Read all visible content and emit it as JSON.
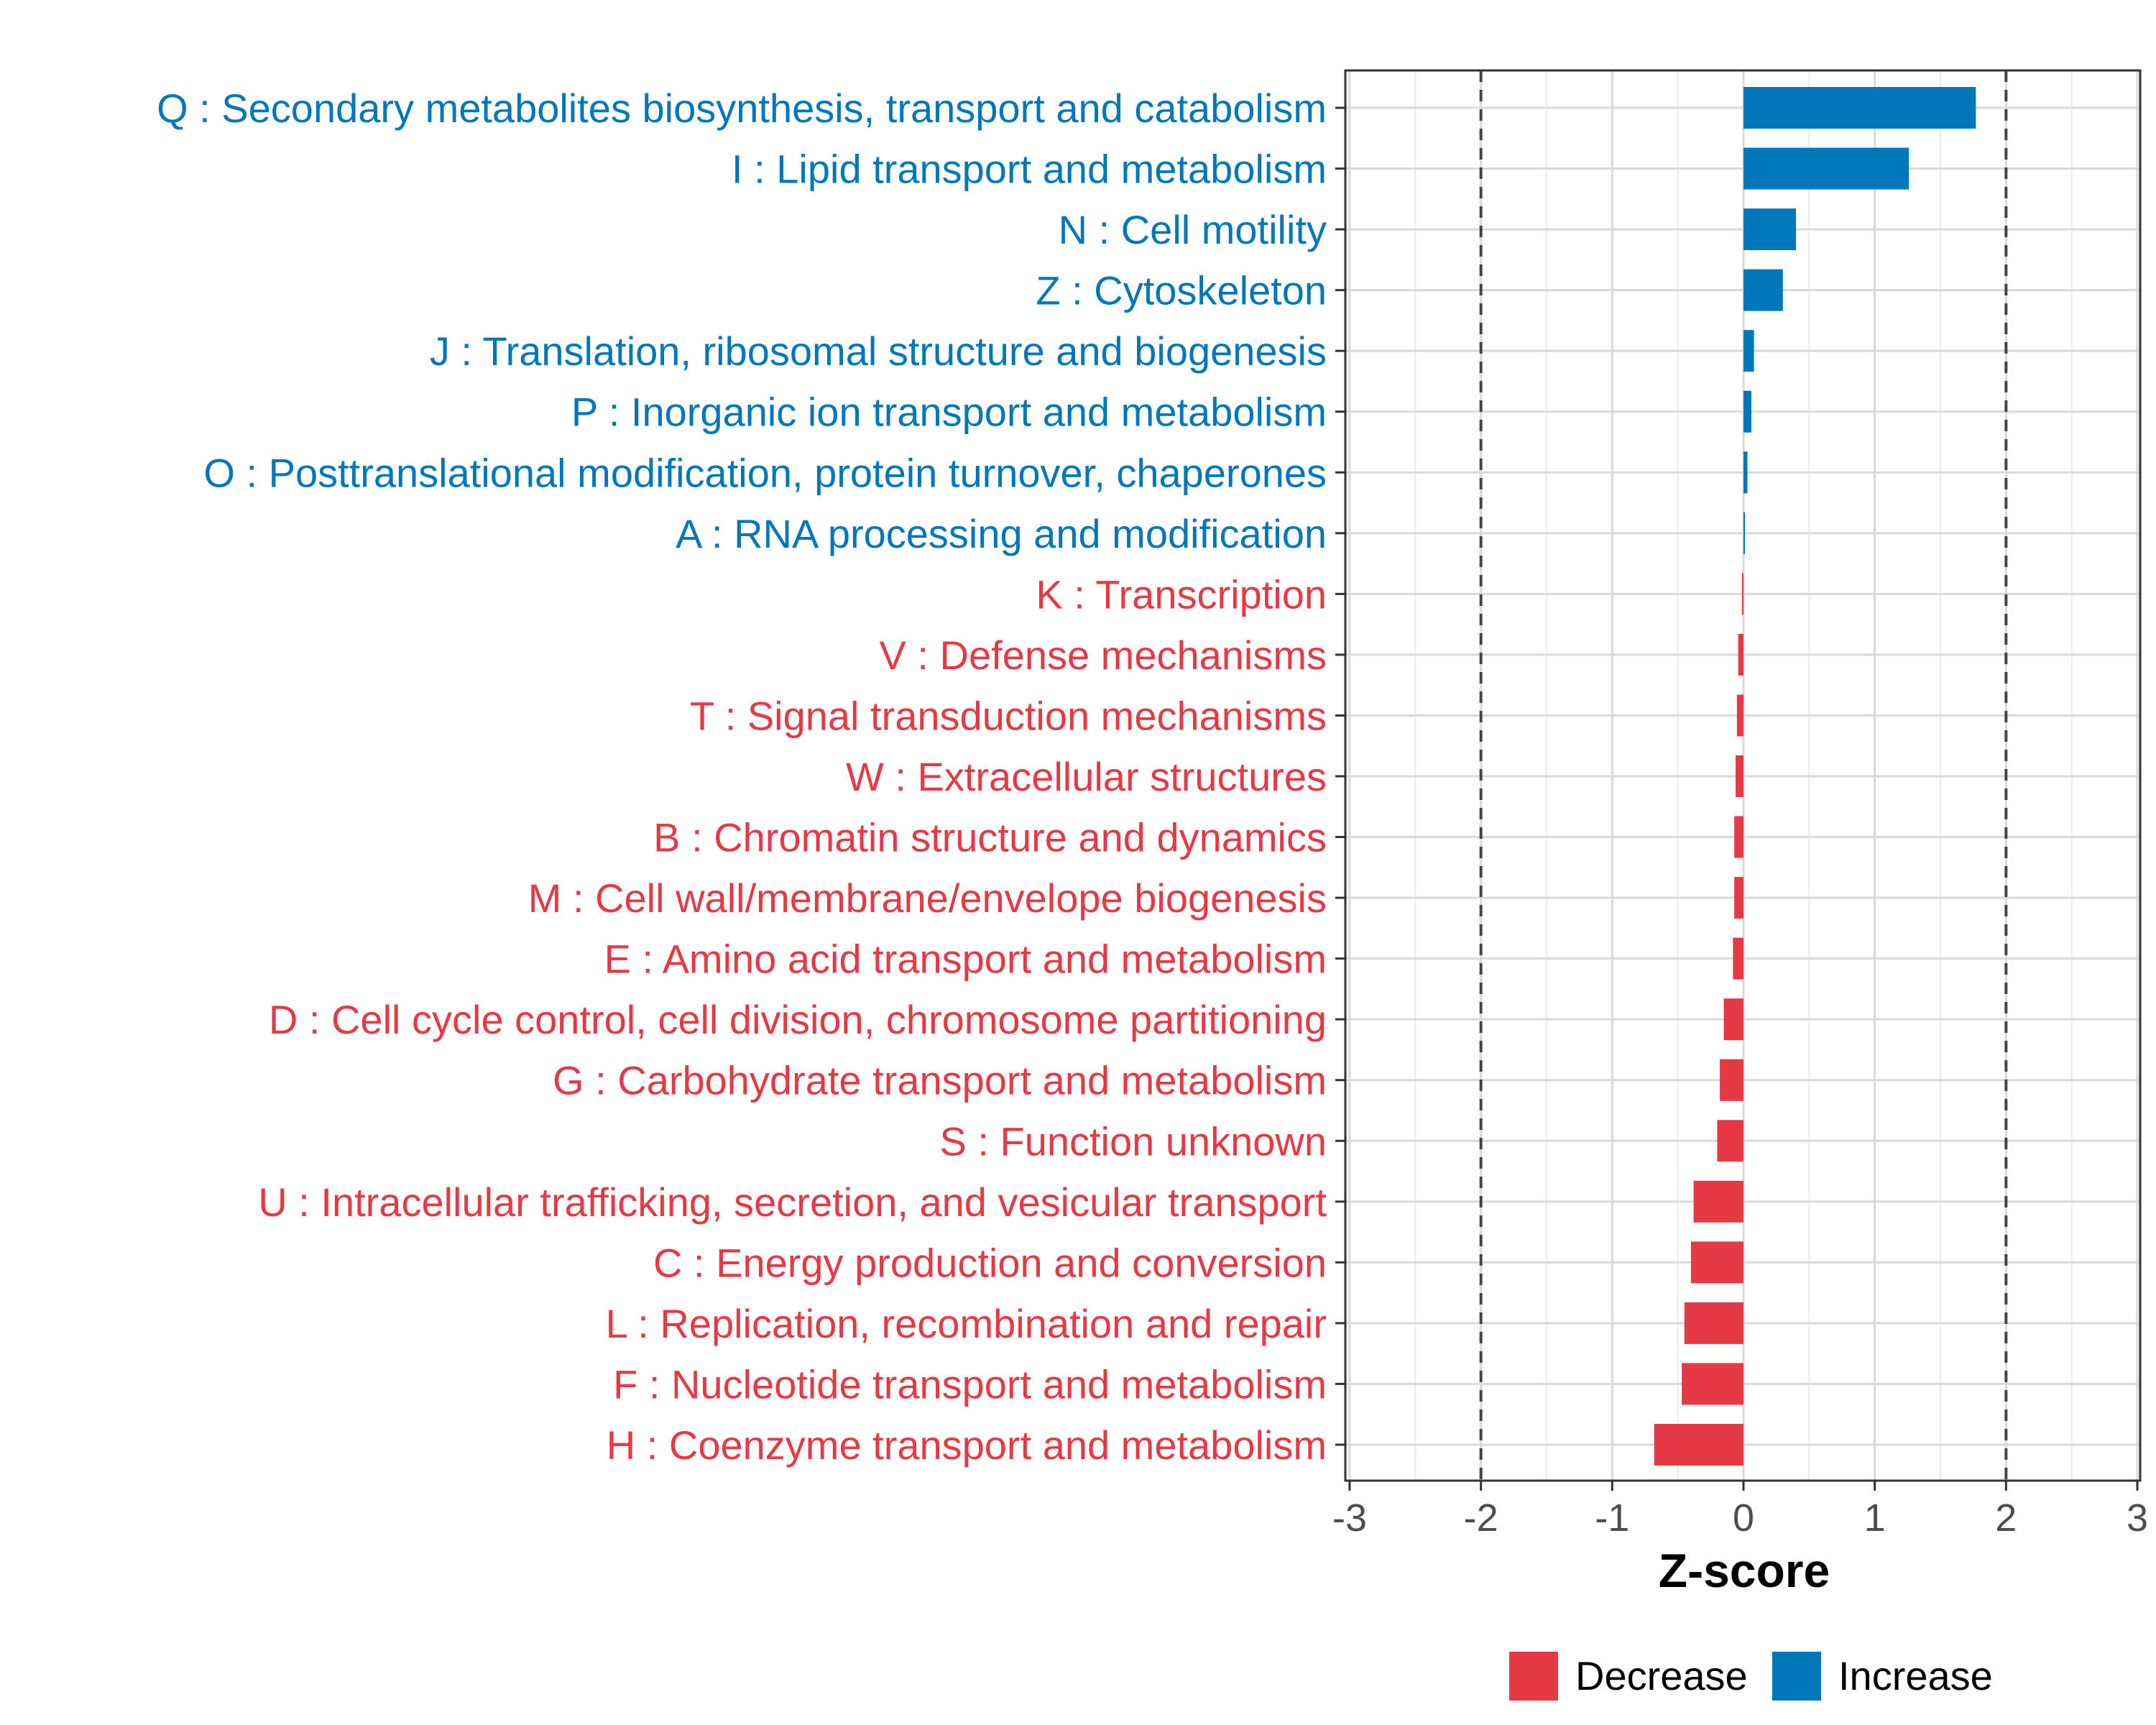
{
  "chart_data": {
    "type": "bar",
    "orientation": "horizontal",
    "xlabel": "Z-score",
    "xlim": [
      -3,
      3
    ],
    "xticks": [
      "-3",
      "-2",
      "-1",
      "0",
      "1",
      "2",
      "3"
    ],
    "reference_lines": [
      -2,
      2
    ],
    "grid": true,
    "legend_position": "bottom",
    "legend": [
      {
        "label": "Decrease",
        "color": "#E63946"
      },
      {
        "label": "Increase",
        "color": "#0077BB"
      }
    ],
    "categories": [
      "Q : Secondary metabolites biosynthesis, transport and catabolism",
      "I : Lipid transport and metabolism",
      "N : Cell motility",
      "Z : Cytoskeleton",
      "J : Translation, ribosomal structure and biogenesis",
      "P : Inorganic ion transport and metabolism",
      "O : Posttranslational modification, protein turnover, chaperones",
      "A : RNA processing and modification",
      "K : Transcription",
      "V : Defense mechanisms",
      "T : Signal transduction mechanisms",
      "W : Extracellular structures",
      "B : Chromatin structure and dynamics",
      "M : Cell wall/membrane/envelope biogenesis",
      "E : Amino acid transport and metabolism",
      "D : Cell cycle control, cell division, chromosome partitioning",
      "G : Carbohydrate transport and metabolism",
      "S : Function unknown",
      "U : Intracellular trafficking, secretion, and vesicular transport",
      "C : Energy production and conversion",
      "L : Replication, recombination and repair",
      "F : Nucleotide transport and metabolism",
      "H : Coenzyme transport and metabolism"
    ],
    "values": [
      1.77,
      1.26,
      0.4,
      0.3,
      0.08,
      0.06,
      0.03,
      0.01,
      -0.01,
      -0.04,
      -0.05,
      -0.06,
      -0.07,
      -0.07,
      -0.08,
      -0.15,
      -0.18,
      -0.2,
      -0.38,
      -0.4,
      -0.45,
      -0.47,
      -0.68
    ]
  }
}
